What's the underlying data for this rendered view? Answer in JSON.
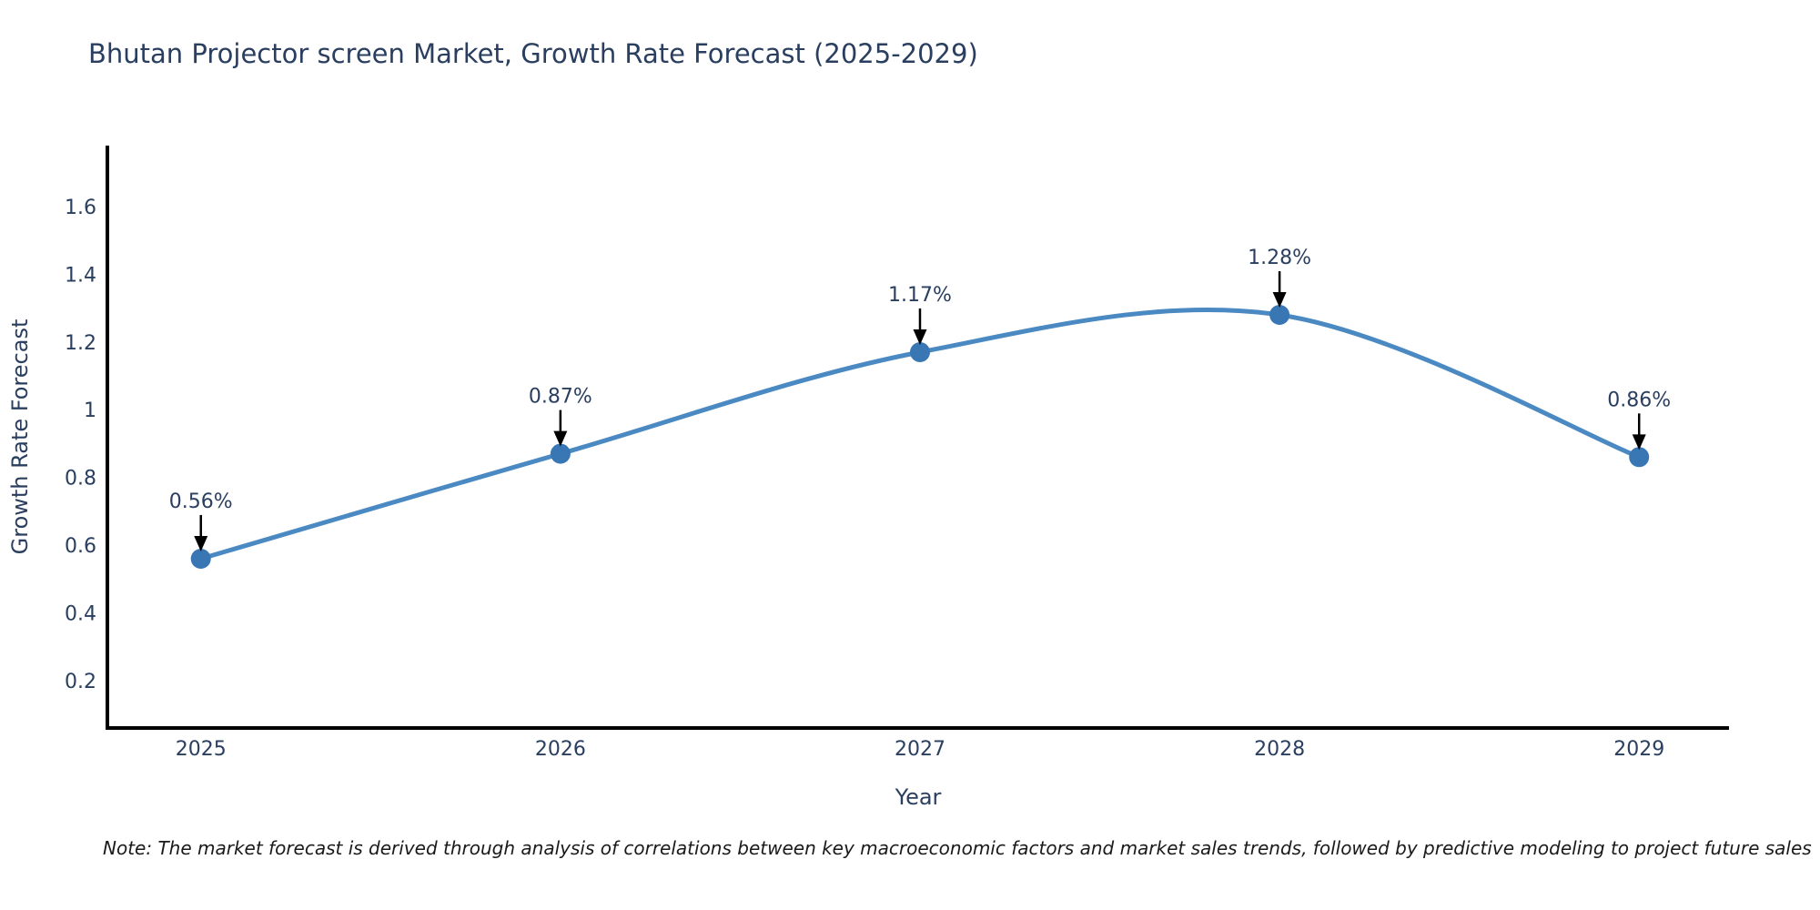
{
  "title": "Bhutan Projector screen Market, Growth Rate Forecast (2025-2029)",
  "note": "Note: The market forecast is derived through analysis of correlations between key macroeconomic factors and market sales trends, followed by predictive modeling to project future sales",
  "chart_data": {
    "type": "line",
    "title": "Bhutan Projector screen Market, Growth Rate Forecast (2025-2029)",
    "xlabel": "Year",
    "ylabel": "Growth Rate Forecast",
    "line_shape": "spline",
    "grid": false,
    "legend": "none",
    "categories": [
      2025,
      2026,
      2027,
      2028,
      2029
    ],
    "values": [
      0.56,
      0.87,
      1.17,
      1.28,
      0.86
    ],
    "point_labels": [
      "0.56%",
      "0.87%",
      "1.17%",
      "1.28%",
      "0.86%"
    ],
    "xtick_labels": [
      "2025",
      "2026",
      "2027",
      "2028",
      "2029"
    ],
    "ytick_labels": [
      "0.2",
      "0.4",
      "0.6",
      "0.8",
      "1",
      "1.2",
      "1.4",
      "1.6"
    ],
    "ytick_values": [
      0.2,
      0.4,
      0.6,
      0.8,
      1.0,
      1.2,
      1.4,
      1.6
    ],
    "xlim": [
      2024.74,
      2029.25
    ],
    "ylim": [
      0.06,
      1.78
    ],
    "colors": {
      "line": "#4a89c2",
      "marker": "#3876b4",
      "axis": "#000000",
      "text": "#2a3f5f",
      "annotation_arrow": "#000000",
      "note_text": "#1a1a1a",
      "background": "#ffffff"
    }
  }
}
